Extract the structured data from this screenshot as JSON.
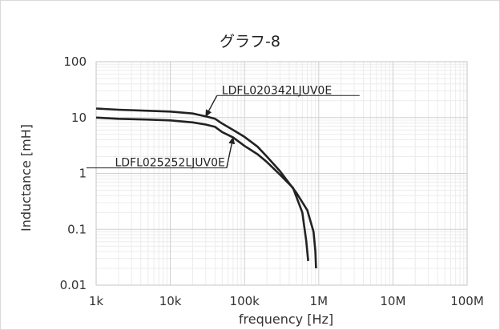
{
  "chart_data": {
    "type": "line",
    "title": "グラフ-8",
    "xlabel": "frequency [Hz]",
    "ylabel": "Inductance [mH]",
    "x_scale": "log",
    "y_scale": "log",
    "xlim": [
      1000,
      100000000
    ],
    "ylim": [
      0.01,
      100
    ],
    "x_ticks": [
      1000,
      10000,
      100000,
      1000000,
      10000000,
      100000000
    ],
    "x_tick_labels": [
      "1k",
      "10k",
      "100k",
      "1M",
      "10M",
      "100M"
    ],
    "y_ticks": [
      0.01,
      0.1,
      1,
      10,
      100
    ],
    "y_tick_labels": [
      "0.01",
      "0.1",
      "1",
      "10",
      "100"
    ],
    "grid": true,
    "minor_grid": true,
    "line_color": "#222222",
    "series": [
      {
        "name": "LDFL020342LJUV0E",
        "points": [
          [
            1000,
            14.5
          ],
          [
            2000,
            13.8
          ],
          [
            5000,
            13.2
          ],
          [
            10000,
            12.8
          ],
          [
            20000,
            11.8
          ],
          [
            30000,
            10.5
          ],
          [
            40000,
            9.5
          ],
          [
            50000,
            7.8
          ],
          [
            70000,
            6.0
          ],
          [
            100000,
            4.5
          ],
          [
            150000,
            3.0
          ],
          [
            200000,
            2.0
          ],
          [
            300000,
            1.1
          ],
          [
            500000,
            0.45
          ],
          [
            700000,
            0.22
          ],
          [
            850000,
            0.09
          ],
          [
            900000,
            0.04
          ],
          [
            920000,
            0.02
          ]
        ]
      },
      {
        "name": "LDFL025252LJUV0E",
        "points": [
          [
            1000,
            10.0
          ],
          [
            2000,
            9.5
          ],
          [
            5000,
            9.2
          ],
          [
            10000,
            8.9
          ],
          [
            20000,
            8.2
          ],
          [
            30000,
            7.5
          ],
          [
            40000,
            6.8
          ],
          [
            50000,
            5.5
          ],
          [
            70000,
            4.4
          ],
          [
            100000,
            3.1
          ],
          [
            150000,
            2.2
          ],
          [
            200000,
            1.6
          ],
          [
            300000,
            0.95
          ],
          [
            450000,
            0.55
          ],
          [
            600000,
            0.2
          ],
          [
            680000,
            0.06
          ],
          [
            720000,
            0.027
          ]
        ]
      }
    ],
    "annotations": [
      {
        "text": "LDFL020342LJUV0E",
        "series": 0,
        "arrow_to": [
          30000,
          10.5
        ]
      },
      {
        "text": "LDFL025252LJUV0E",
        "series": 1,
        "arrow_to": [
          70000,
          4.4
        ]
      }
    ]
  }
}
